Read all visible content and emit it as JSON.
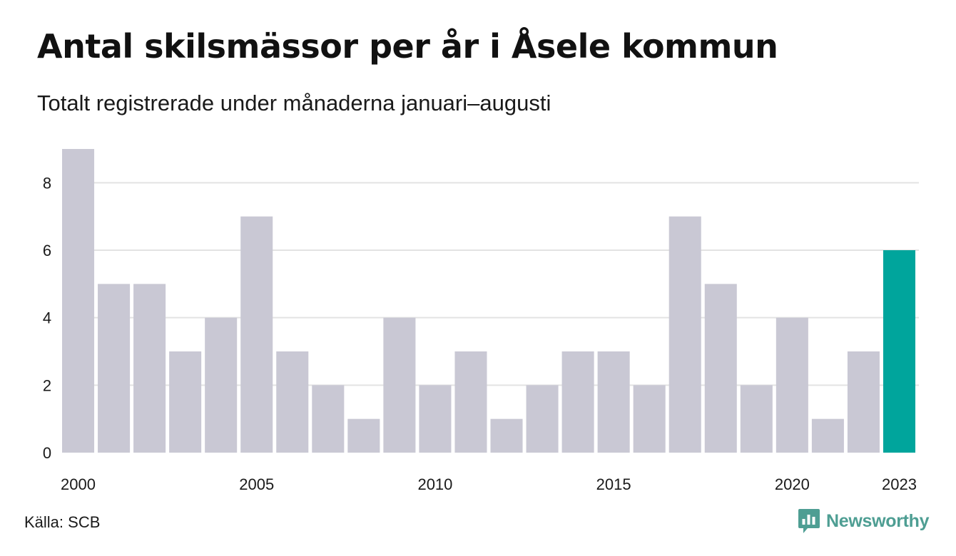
{
  "title": "Antal skilsmässor per år i Åsele kommun",
  "subtitle": "Totalt registrerade under månaderna januari–augusti",
  "source": "Källa: SCB",
  "brand": {
    "name": "Newsworthy",
    "color": "#4e9e93",
    "logo_icon": "newsworthy-chart-bubble-icon"
  },
  "colors": {
    "bar": "#c9c8d4",
    "highlight_bar": "#00a59c",
    "gridline": "#e3e3e3",
    "text": "#1a1a1a"
  },
  "chart_data": {
    "type": "bar",
    "categories": [
      "2000",
      "2001",
      "2002",
      "2003",
      "2004",
      "2005",
      "2006",
      "2007",
      "2008",
      "2009",
      "2010",
      "2011",
      "2012",
      "2013",
      "2014",
      "2015",
      "2016",
      "2017",
      "2018",
      "2019",
      "2020",
      "2021",
      "2022",
      "2023"
    ],
    "values": [
      9,
      5,
      5,
      3,
      4,
      7,
      3,
      2,
      1,
      4,
      2,
      3,
      1,
      2,
      3,
      3,
      2,
      7,
      5,
      2,
      4,
      1,
      3,
      6
    ],
    "highlight_category": "2023",
    "x_tick_labels": [
      "2000",
      "2005",
      "2010",
      "2015",
      "2020",
      "2023"
    ],
    "y_ticks": [
      0,
      2,
      4,
      6,
      8
    ],
    "ylim": [
      0,
      9
    ],
    "xlabel": "",
    "ylabel": "",
    "grid": true,
    "legend": "none"
  }
}
